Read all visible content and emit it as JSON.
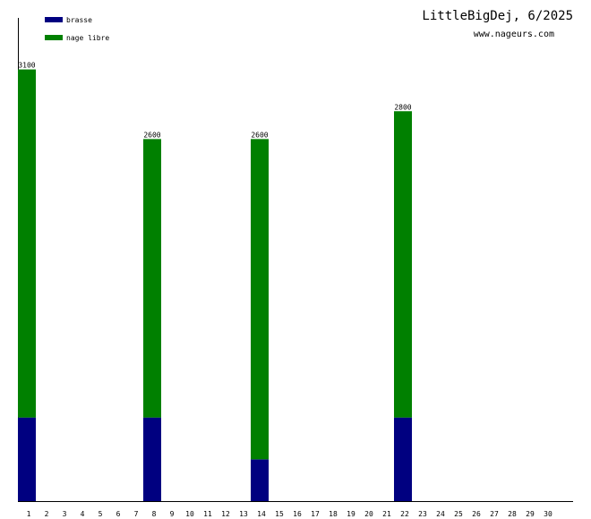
{
  "chart_data": {
    "type": "stacked_bar",
    "title": "LittleBigDej, 6/2025",
    "subtitle": "www.nageurs.com",
    "categories": [
      "1",
      "2",
      "3",
      "4",
      "5",
      "6",
      "7",
      "8",
      "9",
      "10",
      "11",
      "12",
      "13",
      "14",
      "15",
      "16",
      "17",
      "18",
      "19",
      "20",
      "21",
      "22",
      "23",
      "24",
      "25",
      "26",
      "27",
      "28",
      "29",
      "30"
    ],
    "series": [
      {
        "name": "brasse",
        "color": "#000080",
        "values": [
          600,
          null,
          null,
          null,
          null,
          null,
          null,
          600,
          null,
          null,
          null,
          null,
          null,
          300,
          null,
          null,
          null,
          null,
          null,
          null,
          null,
          600,
          null,
          null,
          null,
          null,
          null,
          null,
          null,
          null
        ]
      },
      {
        "name": "nage libre",
        "color": "#008000",
        "values": [
          2500,
          null,
          null,
          null,
          null,
          null,
          null,
          2000,
          null,
          null,
          null,
          null,
          null,
          2300,
          null,
          null,
          null,
          null,
          null,
          null,
          null,
          2200,
          null,
          null,
          null,
          null,
          null,
          null,
          null,
          null
        ]
      }
    ],
    "totals": [
      3100,
      null,
      null,
      null,
      null,
      null,
      null,
      2600,
      null,
      null,
      null,
      null,
      null,
      2600,
      null,
      null,
      null,
      null,
      null,
      null,
      null,
      2800,
      null,
      null,
      null,
      null,
      null,
      null,
      null,
      null
    ],
    "ylim": [
      0,
      3470
    ]
  }
}
